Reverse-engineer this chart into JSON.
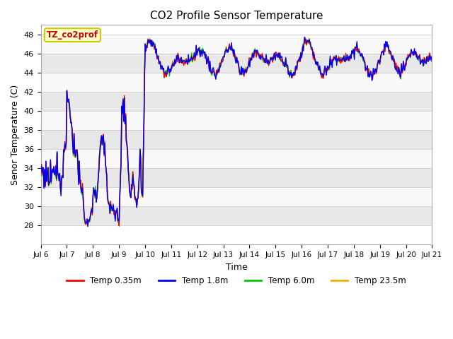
{
  "title": "CO2 Profile Sensor Temperature",
  "xlabel": "Time",
  "ylabel": "Senor Temperature (C)",
  "ylim": [
    26,
    49
  ],
  "yticks": [
    28,
    30,
    32,
    34,
    36,
    38,
    40,
    42,
    44,
    46,
    48
  ],
  "legend_label": "TZ_co2prof",
  "legend_bg": "#ffffcc",
  "legend_edge": "#cccc00",
  "series_colors": [
    "#ff0000",
    "#0000ff",
    "#00cc00",
    "#ffaa00"
  ],
  "series_labels": [
    "Temp 0.35m",
    "Temp 1.8m",
    "Temp 6.0m",
    "Temp 23.5m"
  ],
  "fig_bg": "#ffffff",
  "plot_bg": "#f0f0f0",
  "band_color1": "#e8e8e8",
  "band_color2": "#f8f8f8",
  "grid_color": "#dddddd",
  "figsize": [
    6.4,
    4.8
  ],
  "dpi": 100,
  "xtick_labels": [
    "Jul 6",
    "Jul 7",
    "Jul 8",
    "Jul 9",
    "Jul 10",
    "Jul 11",
    "Jul 12",
    "Jul 13",
    "Jul 14",
    "Jul 15",
    "Jul 16",
    "Jul 17",
    "Jul 18",
    "Jul 19",
    "Jul 20",
    "Jul 21"
  ]
}
